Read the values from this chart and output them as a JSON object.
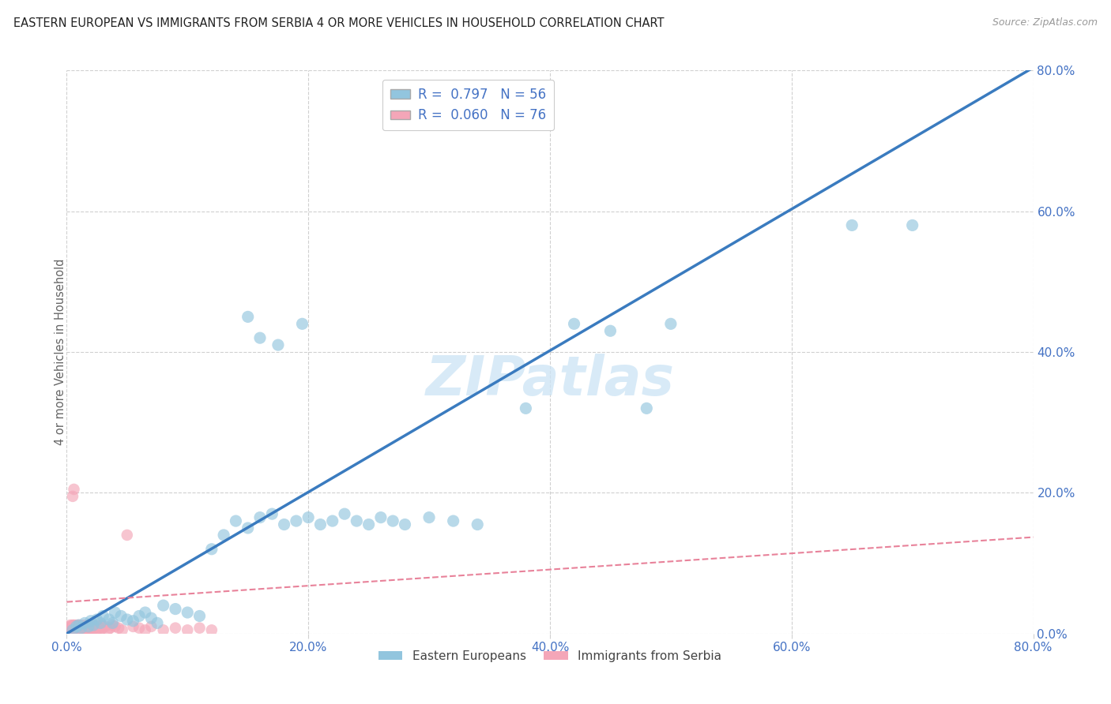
{
  "title": "EASTERN EUROPEAN VS IMMIGRANTS FROM SERBIA 4 OR MORE VEHICLES IN HOUSEHOLD CORRELATION CHART",
  "source": "Source: ZipAtlas.com",
  "ylabel": "4 or more Vehicles in Household",
  "legend_label1": "Eastern Europeans",
  "legend_label2": "Immigrants from Serbia",
  "R1": 0.797,
  "N1": 56,
  "R2": 0.06,
  "N2": 76,
  "watermark": "ZIPatlas",
  "blue_color": "#92c5de",
  "pink_color": "#f4a6b8",
  "line_blue": "#3a7bbf",
  "line_pink": "#e8829a",
  "tick_color": "#4472c4",
  "grid_color": "#d0d0d0",
  "xlim": [
    0.0,
    0.8
  ],
  "ylim": [
    0.0,
    0.8
  ],
  "tick_vals": [
    0.0,
    0.2,
    0.4,
    0.6,
    0.8
  ],
  "slope_ee": 1.005,
  "intercept_ee": 0.0,
  "slope_serb": 0.115,
  "intercept_serb": 0.045,
  "eastern_x": [
    0.005,
    0.008,
    0.01,
    0.012,
    0.015,
    0.018,
    0.02,
    0.022,
    0.025,
    0.028,
    0.03,
    0.035,
    0.038,
    0.04,
    0.045,
    0.05,
    0.055,
    0.06,
    0.065,
    0.07,
    0.075,
    0.08,
    0.09,
    0.1,
    0.11,
    0.12,
    0.13,
    0.14,
    0.15,
    0.16,
    0.17,
    0.18,
    0.19,
    0.2,
    0.21,
    0.22,
    0.23,
    0.24,
    0.25,
    0.26,
    0.27,
    0.28,
    0.3,
    0.32,
    0.34,
    0.15,
    0.16,
    0.175,
    0.195,
    0.38,
    0.42,
    0.45,
    0.48,
    0.5,
    0.65,
    0.7
  ],
  "eastern_y": [
    0.005,
    0.01,
    0.012,
    0.008,
    0.015,
    0.01,
    0.018,
    0.012,
    0.02,
    0.015,
    0.025,
    0.02,
    0.015,
    0.03,
    0.025,
    0.02,
    0.018,
    0.025,
    0.03,
    0.022,
    0.015,
    0.04,
    0.035,
    0.03,
    0.025,
    0.12,
    0.14,
    0.16,
    0.15,
    0.165,
    0.17,
    0.155,
    0.16,
    0.165,
    0.155,
    0.16,
    0.17,
    0.16,
    0.155,
    0.165,
    0.16,
    0.155,
    0.165,
    0.16,
    0.155,
    0.45,
    0.42,
    0.41,
    0.44,
    0.32,
    0.44,
    0.43,
    0.32,
    0.44,
    0.58,
    0.58
  ],
  "serbia_x": [
    0.001,
    0.002,
    0.002,
    0.003,
    0.003,
    0.003,
    0.004,
    0.004,
    0.004,
    0.005,
    0.005,
    0.005,
    0.006,
    0.006,
    0.006,
    0.006,
    0.007,
    0.007,
    0.007,
    0.008,
    0.008,
    0.008,
    0.009,
    0.009,
    0.01,
    0.01,
    0.01,
    0.011,
    0.011,
    0.012,
    0.012,
    0.013,
    0.013,
    0.014,
    0.014,
    0.015,
    0.015,
    0.016,
    0.016,
    0.017,
    0.017,
    0.018,
    0.018,
    0.019,
    0.019,
    0.02,
    0.02,
    0.021,
    0.022,
    0.023,
    0.024,
    0.025,
    0.026,
    0.027,
    0.028,
    0.029,
    0.03,
    0.032,
    0.034,
    0.036,
    0.038,
    0.04,
    0.043,
    0.046,
    0.05,
    0.055,
    0.06,
    0.065,
    0.07,
    0.08,
    0.09,
    0.1,
    0.11,
    0.12,
    0.005,
    0.006
  ],
  "serbia_y": [
    0.005,
    0.01,
    0.005,
    0.008,
    0.012,
    0.005,
    0.01,
    0.008,
    0.005,
    0.012,
    0.008,
    0.005,
    0.01,
    0.008,
    0.012,
    0.005,
    0.01,
    0.008,
    0.005,
    0.012,
    0.008,
    0.005,
    0.01,
    0.005,
    0.012,
    0.008,
    0.005,
    0.01,
    0.005,
    0.008,
    0.012,
    0.005,
    0.01,
    0.008,
    0.005,
    0.012,
    0.008,
    0.005,
    0.01,
    0.008,
    0.005,
    0.012,
    0.008,
    0.005,
    0.01,
    0.008,
    0.012,
    0.005,
    0.01,
    0.008,
    0.012,
    0.005,
    0.01,
    0.008,
    0.005,
    0.012,
    0.008,
    0.01,
    0.005,
    0.008,
    0.012,
    0.01,
    0.008,
    0.005,
    0.14,
    0.01,
    0.008,
    0.005,
    0.01,
    0.005,
    0.008,
    0.005,
    0.008,
    0.005,
    0.195,
    0.205
  ]
}
